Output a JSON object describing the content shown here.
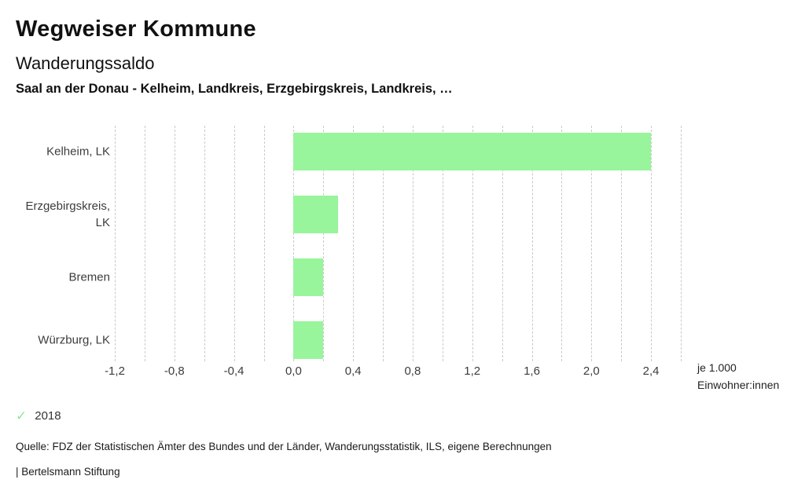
{
  "header": {
    "title": "Wegweiser Kommune",
    "subtitle": "Wanderungssaldo",
    "selection": "Saal an der Donau - Kelheim, Landkreis, Erzgebirgskreis, Landkreis, …"
  },
  "chart_data": {
    "type": "bar",
    "orientation": "horizontal",
    "title": "Wanderungssaldo",
    "categories": [
      "Kelheim, LK",
      "Erzgebirgskreis, LK",
      "Bremen",
      "Würzburg, LK"
    ],
    "series": [
      {
        "name": "2018",
        "values": [
          2.4,
          0.3,
          0.2,
          0.2
        ]
      }
    ],
    "xlabel_line1": "je 1.000",
    "xlabel_line2": "Einwohner:innen",
    "xlim": [
      -1.2,
      2.6
    ],
    "grid": true,
    "grid_step": 0.2,
    "tick_values": [
      -1.2,
      -0.8,
      -0.4,
      0.0,
      0.4,
      0.8,
      1.2,
      1.6,
      2.0,
      2.4
    ],
    "tick_labels": [
      "-1,2",
      "-0,8",
      "-0,4",
      "0,0",
      "0,4",
      "0,8",
      "1,2",
      "1,6",
      "2,0",
      "2,4"
    ],
    "legend_position": "bottom-left"
  },
  "legend": {
    "items": [
      {
        "label": "2018",
        "checked": true
      }
    ]
  },
  "footer": {
    "source": "Quelle: FDZ der Statistischen Ämter des Bundes und der Länder, Wanderungsstatistik, ILS, eigene Berechnungen",
    "branding": "| Bertelsmann Stiftung"
  },
  "colors": {
    "bar": "#98f59b",
    "legend_check": "#8fe796",
    "grid": "#c9c9c9"
  }
}
